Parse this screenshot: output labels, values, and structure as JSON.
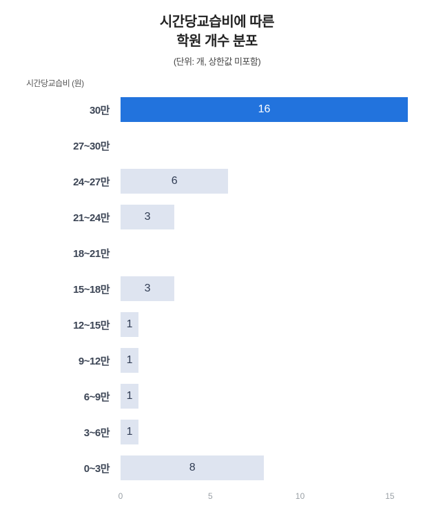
{
  "header": {
    "title_line1": "시간당교습비에 따른",
    "title_line2": "학원 개수 분포",
    "subtitle": "(단위: 개, 상한값 미포함)"
  },
  "axis": {
    "y_title": "시간당교습비 (원)"
  },
  "colors": {
    "highlight_bar": "#2273dd",
    "bar": "#dee4f0",
    "value_dark": "#2f3b52",
    "value_light": "#ffffff",
    "tick": "#9aa0a6",
    "title": "#222222"
  },
  "chart_data": {
    "type": "bar",
    "orientation": "horizontal",
    "title": "시간당교습비에 따른 학원 개수 분포",
    "subtitle": "(단위: 개, 상한값 미포함)",
    "ylabel": "시간당교습비 (원)",
    "xlabel": "",
    "categories": [
      "30만",
      "27~30만",
      "24~27만",
      "21~24만",
      "18~21만",
      "15~18만",
      "12~15만",
      "9~12만",
      "6~9만",
      "3~6만",
      "0~3만"
    ],
    "values": [
      16,
      0,
      6,
      3,
      0,
      3,
      1,
      1,
      1,
      1,
      8
    ],
    "highlight_index": 0,
    "x_ticks": [
      0,
      5,
      10,
      15
    ],
    "xlim": [
      0,
      16.5
    ],
    "grid": false,
    "legend": false
  }
}
